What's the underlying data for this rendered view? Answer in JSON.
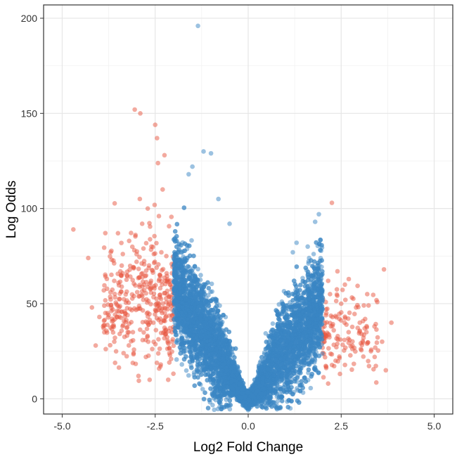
{
  "chart_data": {
    "type": "scatter",
    "xlabel": "Log2 Fold Change",
    "ylabel": "Log Odds",
    "xlim": [
      -5.5,
      5.5
    ],
    "ylim": [
      -8,
      207
    ],
    "x_ticks": [
      "-5.0",
      "-2.5",
      "0.0",
      "2.5",
      "5.0"
    ],
    "y_ticks": [
      "0",
      "50",
      "100",
      "150",
      "200"
    ],
    "grid": true,
    "fold_change_threshold": 2,
    "colors": {
      "significant": "#E8553F",
      "not_significant": "#3A86C4",
      "grid_major": "#E6E6E6",
      "grid_minor": "#F2F2F2",
      "panel_border": "#333333"
    },
    "point_alpha": 0.5,
    "series": [
      {
        "group": "significant",
        "color": "#E8553F",
        "points": [
          [
            -4.7,
            89
          ],
          [
            -4.3,
            74
          ],
          [
            -4.2,
            48
          ],
          [
            -4.0,
            43
          ],
          [
            -3.9,
            38
          ],
          [
            -3.8,
            63
          ],
          [
            -3.7,
            56
          ],
          [
            -3.6,
            30
          ],
          [
            -3.5,
            87
          ],
          [
            -3.4,
            70
          ],
          [
            -3.3,
            45
          ],
          [
            -3.2,
            83
          ],
          [
            -3.1,
            35
          ],
          [
            -3.05,
            152
          ],
          [
            -3.0,
            72
          ],
          [
            -2.9,
            150
          ],
          [
            -2.85,
            92
          ],
          [
            -2.8,
            60
          ],
          [
            -2.75,
            22
          ],
          [
            -2.7,
            100
          ],
          [
            -2.6,
            80
          ],
          [
            -2.55,
            40
          ],
          [
            -2.5,
            144
          ],
          [
            -2.45,
            137
          ],
          [
            -2.4,
            96
          ],
          [
            -2.35,
            18
          ],
          [
            -2.3,
            110
          ],
          [
            -2.25,
            128
          ],
          [
            -2.2,
            75
          ],
          [
            -2.15,
            10
          ],
          [
            -2.1,
            60
          ],
          [
            -2.05,
            35
          ],
          [
            -4.1,
            28
          ],
          [
            -3.75,
            44
          ],
          [
            -3.35,
            24
          ],
          [
            -2.95,
            12
          ],
          [
            2.05,
            30
          ],
          [
            2.1,
            45
          ],
          [
            2.15,
            62
          ],
          [
            2.2,
            55
          ],
          [
            2.25,
            103
          ],
          [
            2.3,
            36
          ],
          [
            2.35,
            20
          ],
          [
            2.4,
            67
          ],
          [
            2.45,
            42
          ],
          [
            2.5,
            50
          ],
          [
            2.6,
            60
          ],
          [
            2.7,
            35
          ],
          [
            2.8,
            28
          ],
          [
            2.9,
            48
          ],
          [
            3.0,
            40
          ],
          [
            3.1,
            32
          ],
          [
            3.2,
            55
          ],
          [
            3.3,
            25
          ],
          [
            3.4,
            22
          ],
          [
            3.6,
            30
          ],
          [
            3.65,
            68
          ],
          [
            3.7,
            15
          ],
          [
            3.85,
            40
          ],
          [
            2.15,
            8
          ]
        ]
      },
      {
        "group": "not_significant",
        "color": "#3A86C4",
        "points": [
          [
            -1.35,
            196
          ],
          [
            -1.2,
            130
          ],
          [
            -1.0,
            129
          ],
          [
            -1.5,
            122
          ],
          [
            -1.6,
            118
          ],
          [
            -0.8,
            105
          ],
          [
            -0.5,
            92
          ],
          [
            1.3,
            82
          ],
          [
            1.8,
            93
          ],
          [
            1.9,
            97
          ],
          [
            1.6,
            80
          ],
          [
            1.2,
            77
          ]
        ]
      }
    ]
  }
}
